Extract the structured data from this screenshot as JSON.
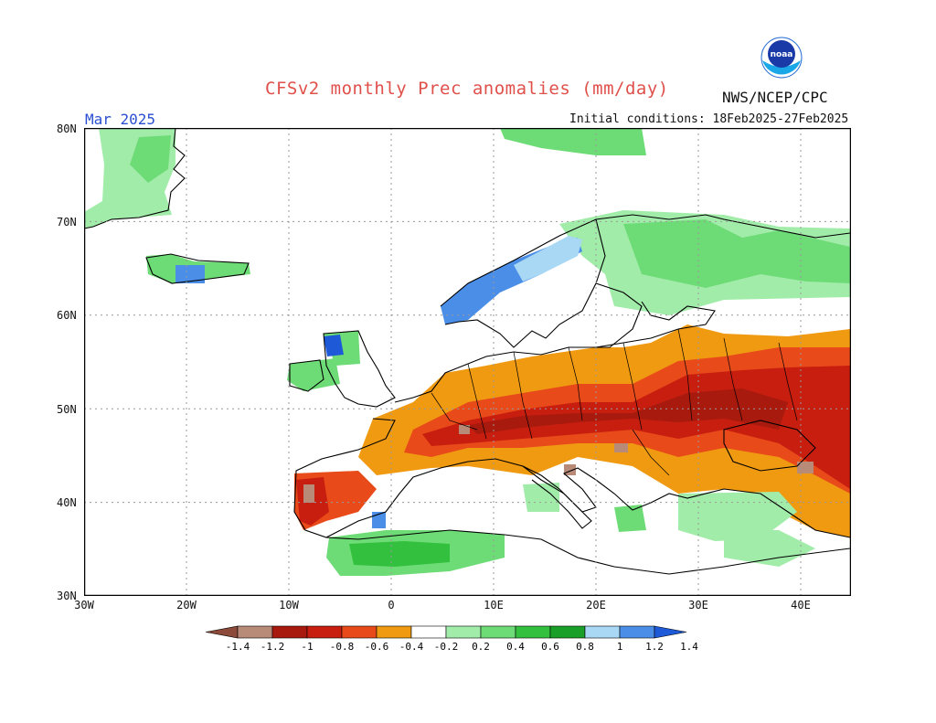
{
  "header": {
    "title": "CFSv2 monthly Prec anomalies (mm/day)",
    "agency": "NWS/NCEP/CPC",
    "month": "Mar 2025",
    "initial_conditions": "Initial conditions: 18Feb2025-27Feb2025",
    "logo_text": "noaa"
  },
  "axes": {
    "lat_labels": [
      "80N",
      "70N",
      "60N",
      "50N",
      "40N",
      "30N"
    ],
    "lon_labels": [
      "30W",
      "20W",
      "10W",
      "0",
      "10E",
      "20E",
      "30E",
      "40E"
    ]
  },
  "legend": {
    "labels": [
      "-1.4",
      "-1.2",
      "-1",
      "-0.8",
      "-0.6",
      "-0.4",
      "-0.2",
      "0.2",
      "0.4",
      "0.6",
      "0.8",
      "1",
      "1.2",
      "1.4"
    ],
    "colors": [
      "#8b4a3a",
      "#b88a78",
      "#a81a0e",
      "#c81e10",
      "#e84a1a",
      "#f09a12",
      "#ffffff",
      "#a2ecaa",
      "#6edc76",
      "#32c03e",
      "#1aa028",
      "#a8d8f4",
      "#4a8ee8",
      "#1e5ad8"
    ]
  },
  "colors": {
    "dry_strong": "#c81e10",
    "dry_very_strong": "#a81a0e",
    "dry_moderate": "#e84a1a",
    "dry_weak": "#f09a12",
    "wet_weak": "#a2ecaa",
    "wet_moderate": "#6edc76",
    "wet_strong": "#32c03e",
    "wet_blue": "#4a8ee8",
    "extreme_dry": "#b88a78"
  }
}
